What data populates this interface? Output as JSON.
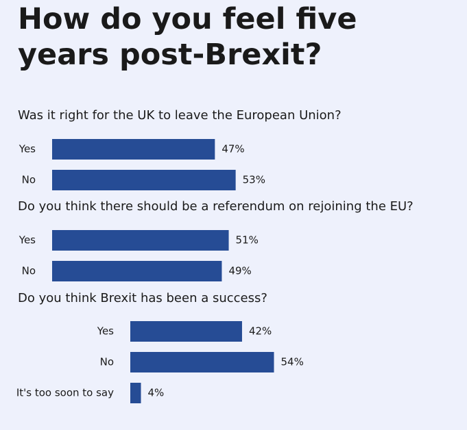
{
  "title": "How do you feel five years post-Brexit?",
  "chart_data": [
    {
      "type": "bar",
      "title": "Was it right for the UK to leave the European Union?",
      "categories": [
        "Yes",
        "No"
      ],
      "values": [
        47,
        53
      ],
      "value_labels": [
        "47%",
        "53%"
      ],
      "color": "#264c95"
    },
    {
      "type": "bar",
      "title": "Do you think there should be a referendum on rejoining the EU?",
      "categories": [
        "Yes",
        "No"
      ],
      "values": [
        51,
        49
      ],
      "value_labels": [
        "51%",
        "49%"
      ],
      "color": "#264c95"
    },
    {
      "type": "bar",
      "title": "Do you think Brexit has been a success?",
      "categories": [
        "Yes",
        "No",
        "It's too soon to say"
      ],
      "values": [
        42,
        54,
        4
      ],
      "value_labels": [
        "42%",
        "54%",
        "4%"
      ],
      "color": "#264c95"
    }
  ]
}
